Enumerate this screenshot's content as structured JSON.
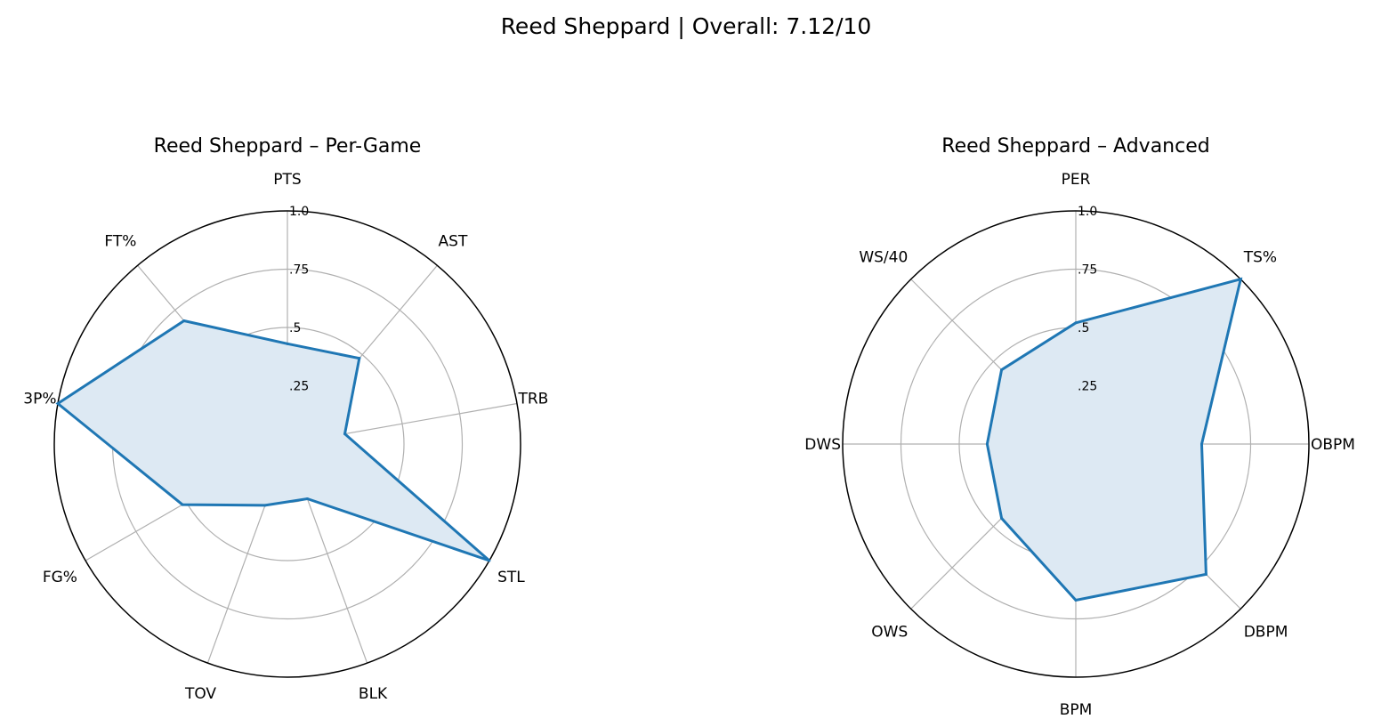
{
  "figure": {
    "suptitle": "Reed Sheppard | Overall: 7.12/10",
    "line_color": "#1f77b4",
    "fill_color": "#dde9f3",
    "grid_color": "#b0b0b0"
  },
  "chart_data": [
    {
      "type": "radar",
      "title": "Reed Sheppard – Per-Game",
      "rlim": [
        0,
        1
      ],
      "radial_ticks": [
        {
          "value": 0.25,
          "label": ".25"
        },
        {
          "value": 0.5,
          "label": ".5"
        },
        {
          "value": 0.75,
          "label": ".75"
        },
        {
          "value": 1.0,
          "label": "1.0"
        }
      ],
      "grid": true,
      "categories": [
        "PTS",
        "AST",
        "TRB",
        "STL",
        "BLK",
        "TOV",
        "FG%",
        "3P%",
        "FT%"
      ],
      "values": [
        0.43,
        0.48,
        0.25,
        1.0,
        0.25,
        0.28,
        0.52,
        1.0,
        0.69
      ]
    },
    {
      "type": "radar",
      "title": "Reed Sheppard – Advanced",
      "rlim": [
        0,
        1
      ],
      "radial_ticks": [
        {
          "value": 0.25,
          "label": ".25"
        },
        {
          "value": 0.5,
          "label": ".5"
        },
        {
          "value": 0.75,
          "label": ".75"
        },
        {
          "value": 1.0,
          "label": "1.0"
        }
      ],
      "grid": true,
      "categories": [
        "PER",
        "TS%",
        "OBPM",
        "DBPM",
        "BPM",
        "OWS",
        "DWS",
        "WS/40"
      ],
      "values": [
        0.52,
        1.0,
        0.54,
        0.79,
        0.67,
        0.45,
        0.38,
        0.45
      ]
    }
  ]
}
